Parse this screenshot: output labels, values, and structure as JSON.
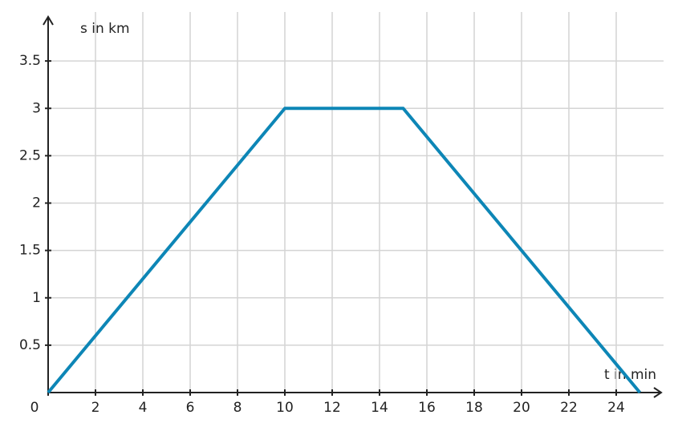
{
  "chart_data": {
    "type": "line",
    "x_label": "t in min",
    "y_label": "s in km",
    "x": [
      0,
      10,
      15,
      25
    ],
    "series": [
      {
        "values": [
          0,
          3,
          3,
          0
        ],
        "color": "#0d86b6"
      }
    ],
    "xlim": [
      0,
      26
    ],
    "ylim": [
      0,
      4
    ],
    "xticks": [
      0,
      2,
      4,
      6,
      8,
      10,
      12,
      14,
      16,
      18,
      20,
      22,
      24
    ],
    "yticks": [
      0.5,
      1,
      1.5,
      2,
      2.5,
      3,
      3.5
    ],
    "grid": true
  }
}
